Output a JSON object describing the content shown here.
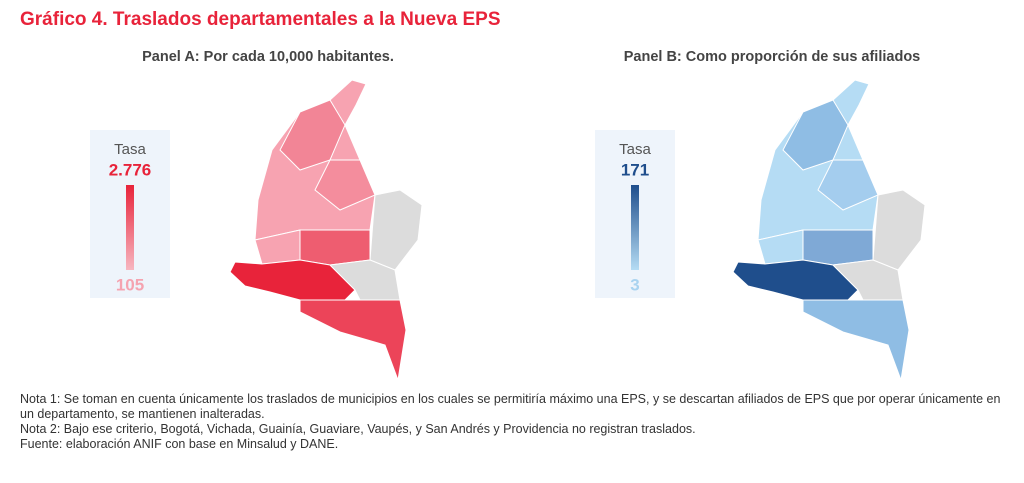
{
  "title": "Gráfico 4. Traslados departamentales a la Nueva EPS",
  "panels": [
    {
      "title": "Panel A: Por cada 10,000 habitantes.",
      "legend": {
        "label": "Tasa",
        "max": "2.776",
        "min": "105"
      }
    },
    {
      "title": "Panel B: Como proporción de sus afiliados",
      "legend": {
        "label": "Tasa",
        "max": "171",
        "min": "3"
      }
    }
  ],
  "notes": [
    "Nota 1: Se toman en cuenta únicamente los traslados de municipios en los cuales se permitiría máximo una EPS, y se descartan afiliados de EPS que por operar únicamente en un departamento, se mantienen inalteradas.",
    "Nota 2: Bajo ese criterio, Bogotá, Vichada, Guainía, Guaviare, Vaupés, y San Andrés y Providencia no registran traslados.",
    "Fuente: elaboración ANIF con base en Minsalud y DANE."
  ]
}
